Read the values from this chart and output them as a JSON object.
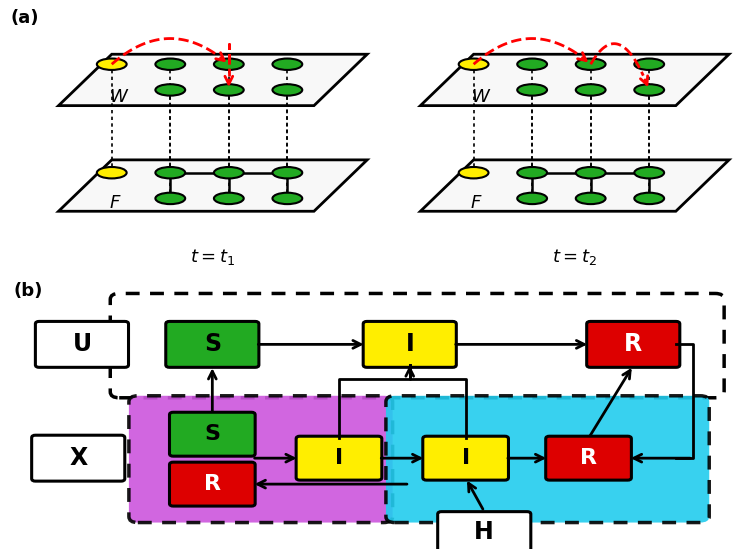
{
  "fig_width": 7.45,
  "fig_height": 5.49,
  "bg_color": "#ffffff",
  "panel_a_label": "(a)",
  "panel_b_label": "(b)",
  "t1_label": "$t = t_1$",
  "t2_label": "$t = t_2$",
  "W_label": "W",
  "F_label": "F",
  "node_green": "#22aa22",
  "node_yellow": "#ffee00",
  "red_arc_color": "#ee0000",
  "color_green": "#22aa22",
  "color_yellow": "#ffee00",
  "color_red": "#dd0000",
  "color_white": "#ffffff",
  "color_purple_bg": "#cc55dd",
  "color_cyan_bg": "#22ccee",
  "color_black": "#000000"
}
